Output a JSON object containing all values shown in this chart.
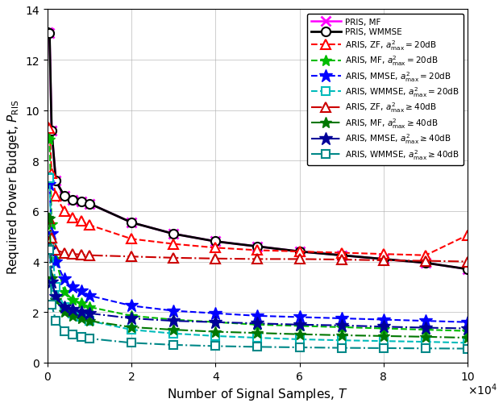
{
  "xlabel": "Number of Signal Samples, $T$",
  "ylabel": "Required Power Budget, $P_{\\mathrm{RIS}}$",
  "xlim": [
    0,
    100000
  ],
  "ylim": [
    0,
    14
  ],
  "xtick_vals": [
    0,
    20000,
    40000,
    60000,
    80000,
    100000
  ],
  "ytick_vals": [
    0,
    2,
    4,
    6,
    8,
    10,
    12,
    14
  ],
  "T": [
    100,
    500,
    1000,
    2000,
    4000,
    6000,
    8000,
    10000,
    20000,
    30000,
    40000,
    50000,
    60000,
    70000,
    80000,
    90000,
    100000
  ],
  "PRIS_MF": [
    13.1,
    13.05,
    9.2,
    7.2,
    6.6,
    6.45,
    6.38,
    6.3,
    5.55,
    5.1,
    4.8,
    4.6,
    4.4,
    4.25,
    4.1,
    3.95,
    3.7
  ],
  "PRIS_WMMSE": [
    13.1,
    13.05,
    9.2,
    7.2,
    6.6,
    6.45,
    6.38,
    6.3,
    5.55,
    5.1,
    4.8,
    4.6,
    4.4,
    4.25,
    4.1,
    3.95,
    3.7
  ],
  "ARIS_ZF_20": [
    9.35,
    9.3,
    7.5,
    6.6,
    6.0,
    5.75,
    5.6,
    5.45,
    4.9,
    4.7,
    4.55,
    4.45,
    4.4,
    4.35,
    4.3,
    4.25,
    5.05
  ],
  "ARIS_MF_20": [
    8.9,
    8.85,
    5.5,
    4.1,
    2.8,
    2.5,
    2.35,
    2.2,
    1.85,
    1.7,
    1.6,
    1.5,
    1.45,
    1.4,
    1.35,
    1.3,
    1.25
  ],
  "ARIS_MMSE_20": [
    7.1,
    7.05,
    5.1,
    4.0,
    3.3,
    3.0,
    2.85,
    2.65,
    2.25,
    2.05,
    1.95,
    1.85,
    1.8,
    1.75,
    1.7,
    1.65,
    1.6
  ],
  "ARIS_WMMSE_20": [
    7.35,
    7.3,
    4.55,
    3.0,
    2.2,
    1.95,
    1.8,
    1.65,
    1.3,
    1.15,
    1.05,
    0.98,
    0.92,
    0.88,
    0.85,
    0.82,
    0.78
  ],
  "ARIS_ZF_40": [
    5.75,
    5.7,
    4.95,
    4.45,
    4.35,
    4.3,
    4.28,
    4.25,
    4.2,
    4.15,
    4.12,
    4.1,
    4.1,
    4.08,
    4.05,
    4.03,
    4.0
  ],
  "ARIS_MF_40": [
    5.75,
    5.7,
    3.35,
    2.5,
    2.0,
    1.85,
    1.75,
    1.65,
    1.4,
    1.3,
    1.22,
    1.17,
    1.12,
    1.08,
    1.05,
    1.02,
    0.98
  ],
  "ARIS_MMSE_40": [
    4.5,
    4.45,
    3.2,
    2.6,
    2.2,
    2.1,
    2.0,
    1.95,
    1.75,
    1.65,
    1.6,
    1.55,
    1.5,
    1.47,
    1.42,
    1.38,
    1.35
  ],
  "ARIS_WMMSE_40": [
    4.5,
    4.45,
    2.3,
    1.65,
    1.25,
    1.1,
    1.02,
    0.95,
    0.78,
    0.7,
    0.65,
    0.62,
    0.6,
    0.58,
    0.57,
    0.56,
    0.55
  ],
  "colors": {
    "PRIS_MF": "#ff00ff",
    "PRIS_WMMSE": "#000000",
    "ARIS_ZF_20": "#ff0000",
    "ARIS_MF_20": "#00bb00",
    "ARIS_MMSE_20": "#0000ff",
    "ARIS_WMMSE_20": "#00bbbb",
    "ARIS_ZF_40": "#cc0000",
    "ARIS_MF_40": "#007700",
    "ARIS_MMSE_40": "#000099",
    "ARIS_WMMSE_40": "#008888"
  },
  "legend_labels": [
    "PRIS, MF",
    "PRIS, WMMSE",
    "ARIS, ZF, $a_{\\mathrm{max}}^2 = 20$dB",
    "ARIS, MF, $a_{\\mathrm{max}}^2 = 20$dB",
    "ARIS, MMSE, $a_{\\mathrm{max}}^2 = 20$dB",
    "ARIS, WMMSE, $a_{\\mathrm{max}}^2 = 20$dB",
    "ARIS, ZF, $a_{\\mathrm{max}}^2 \\geq 40$dB",
    "ARIS, MF, $a_{\\mathrm{max}}^2 \\geq 40$dB",
    "ARIS, MMSE, $a_{\\mathrm{max}}^2 \\geq 40$dB",
    "ARIS, WMMSE, $a_{\\mathrm{max}}^2 \\geq 40$dB"
  ]
}
